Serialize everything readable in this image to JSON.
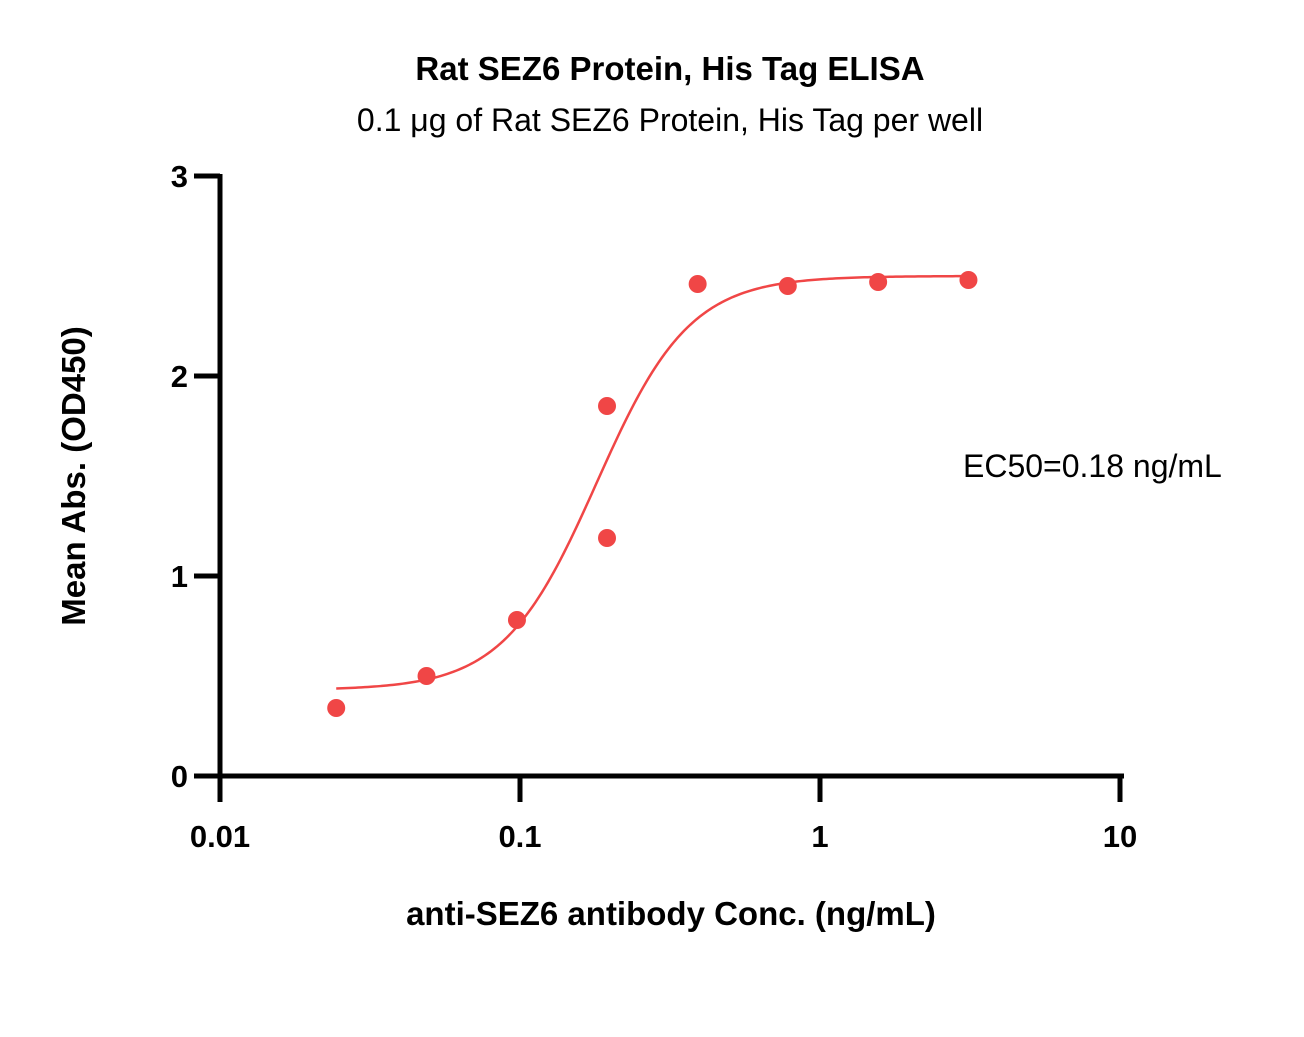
{
  "chart_data": {
    "type": "scatter",
    "title": "Rat SEZ6 Protein, His Tag ELISA",
    "subtitle": "0.1 μg of Rat SEZ6 Protein, His Tag per well",
    "xlabel": "anti-SEZ6 antibody Conc. (ng/mL)",
    "ylabel": "Mean Abs. (OD450)",
    "xscale": "log",
    "xlim": [
      0.01,
      10
    ],
    "ylim": [
      0,
      3
    ],
    "xticks": [
      "0.01",
      "0.1",
      "1",
      "10"
    ],
    "yticks": [
      "0",
      "1",
      "2",
      "3"
    ],
    "grid": false,
    "color": "#f04646",
    "points": [
      {
        "x": 0.0244,
        "y": 0.34
      },
      {
        "x": 0.0488,
        "y": 0.5
      },
      {
        "x": 0.0977,
        "y": 0.78
      },
      {
        "x": 0.195,
        "y": 1.19
      },
      {
        "x": 0.195,
        "y": 1.85
      },
      {
        "x": 0.391,
        "y": 2.46
      },
      {
        "x": 0.781,
        "y": 2.45
      },
      {
        "x": 1.5625,
        "y": 2.47
      },
      {
        "x": 3.125,
        "y": 2.48
      }
    ],
    "fit": {
      "model": "4PL",
      "bottom": 0.43,
      "top": 2.5,
      "ec50": 0.18,
      "hill": 2.8,
      "x_range": [
        0.0244,
        3.125
      ]
    },
    "annotation": "EC50=0.18 ng/mL"
  }
}
